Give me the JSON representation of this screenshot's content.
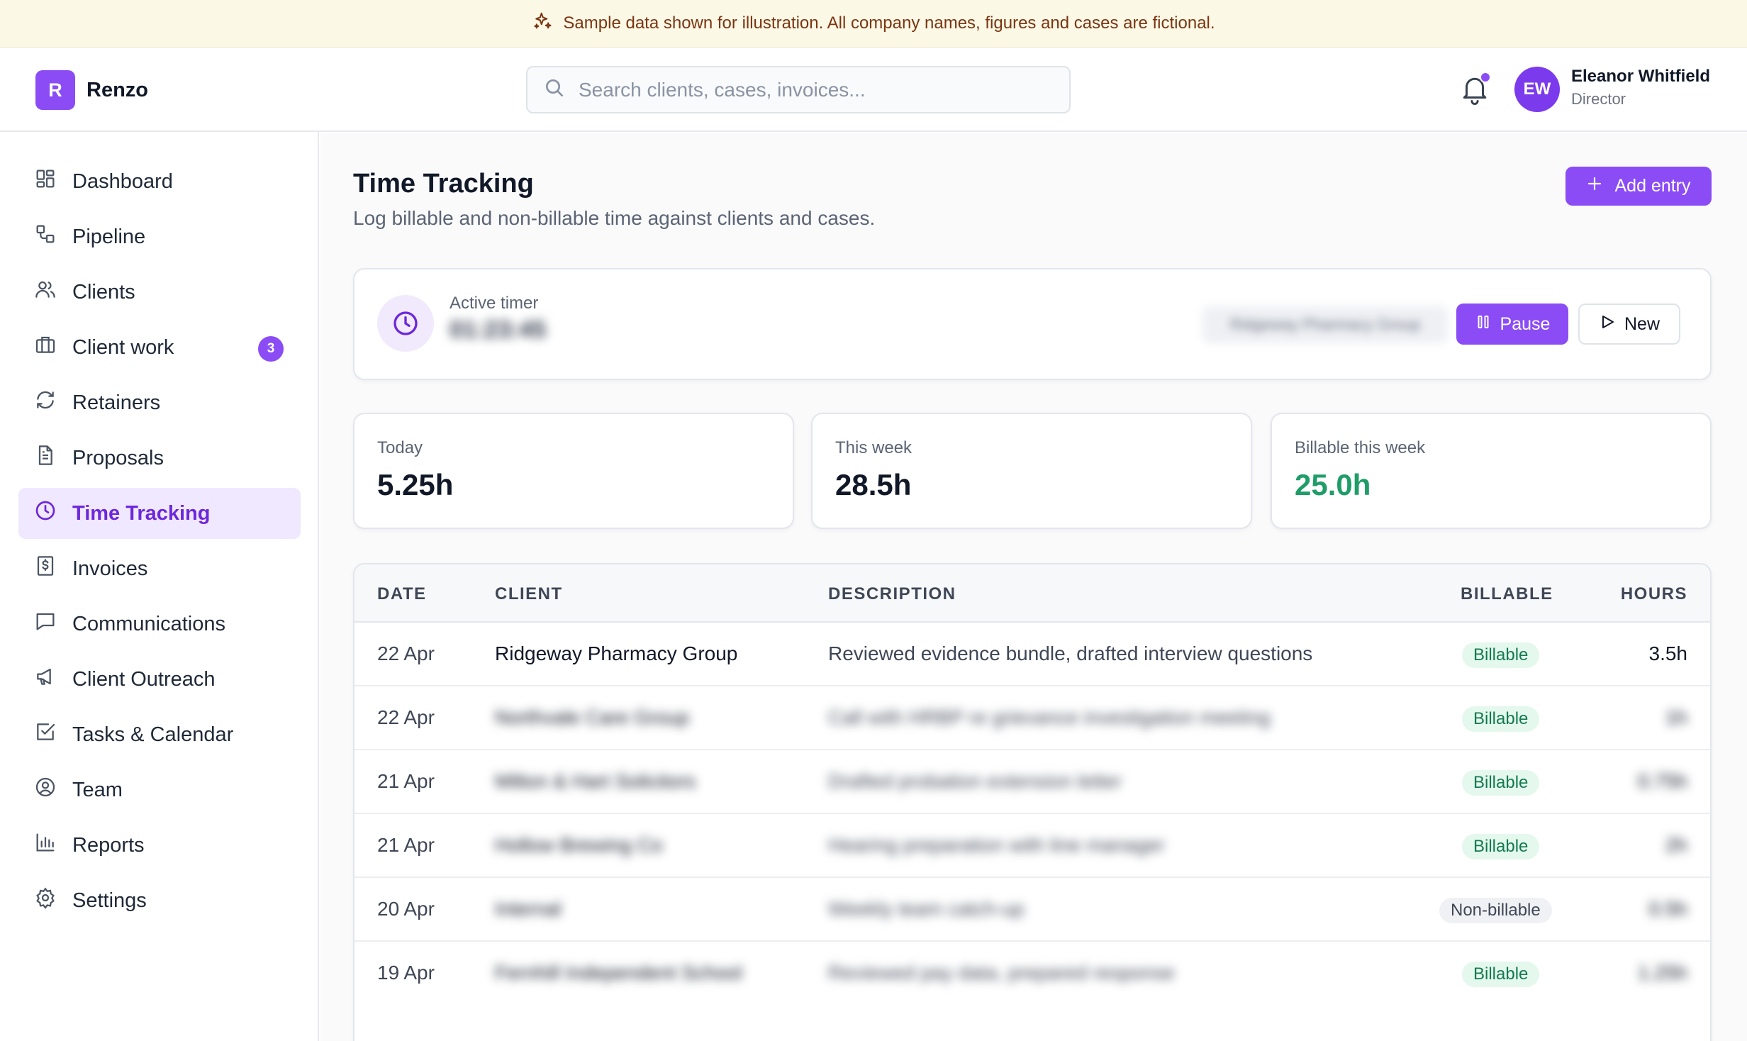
{
  "banner": {
    "text": "Sample data shown for illustration. All company names, figures and cases are fictional.",
    "icon": "sparkles-icon"
  },
  "app": {
    "logo_letter": "R",
    "name": "Renzo"
  },
  "search": {
    "placeholder": "Search clients, cases, invoices..."
  },
  "user": {
    "initials": "EW",
    "name": "Eleanor Whitfield",
    "role": "Director",
    "has_notifications": true
  },
  "sidebar": {
    "items": [
      {
        "label": "Dashboard",
        "icon": "dashboard-icon"
      },
      {
        "label": "Pipeline",
        "icon": "pipeline-icon"
      },
      {
        "label": "Clients",
        "icon": "users-icon"
      },
      {
        "label": "Client work",
        "icon": "briefcase-icon",
        "badge": "3"
      },
      {
        "label": "Retainers",
        "icon": "refresh-icon"
      },
      {
        "label": "Proposals",
        "icon": "document-icon"
      },
      {
        "label": "Time Tracking",
        "icon": "clock-icon",
        "active": true
      },
      {
        "label": "Invoices",
        "icon": "invoice-icon"
      },
      {
        "label": "Communications",
        "icon": "message-icon"
      },
      {
        "label": "Client Outreach",
        "icon": "megaphone-icon"
      },
      {
        "label": "Tasks & Calendar",
        "icon": "checkbox-icon"
      },
      {
        "label": "Team",
        "icon": "user-circle-icon"
      },
      {
        "label": "Reports",
        "icon": "bar-chart-icon"
      },
      {
        "label": "Settings",
        "icon": "gear-icon"
      }
    ]
  },
  "page": {
    "title": "Time Tracking",
    "subtitle": "Log billable and non-billable time against clients and cases.",
    "add_button": "Add entry"
  },
  "timer": {
    "label": "Active timer",
    "value": "01:23:45",
    "case": "Ridgeway Pharmacy Group",
    "pause_label": "Pause",
    "new_label": "New"
  },
  "stats": [
    {
      "label": "Today",
      "value": "5.25h"
    },
    {
      "label": "This week",
      "value": "28.5h"
    },
    {
      "label": "Billable this week",
      "value": "25.0h"
    }
  ],
  "table": {
    "headers": [
      "DATE",
      "CLIENT",
      "DESCRIPTION",
      "BILLABLE",
      "HOURS"
    ],
    "rows": [
      {
        "date": "22 Apr",
        "client": "Ridgeway Pharmacy Group",
        "description": "Reviewed evidence bundle, drafted interview questions",
        "billable": "Billable",
        "hours": "3.5h",
        "redacted": false
      },
      {
        "date": "22 Apr",
        "client": "Northvale Care Group",
        "description": "Call with HRBP re grievance investigation meeting",
        "billable": "Billable",
        "hours": "1h",
        "redacted": true
      },
      {
        "date": "21 Apr",
        "client": "Milton & Hart Solicitors",
        "description": "Drafted probation extension letter",
        "billable": "Billable",
        "hours": "0.75h",
        "redacted": true
      },
      {
        "date": "21 Apr",
        "client": "Hollow Brewing Co",
        "description": "Hearing preparation with line manager",
        "billable": "Billable",
        "hours": "2h",
        "redacted": true
      },
      {
        "date": "20 Apr",
        "client": "Internal",
        "description": "Weekly team catch-up",
        "billable": "Non-billable",
        "hours": "0.5h",
        "redacted": true
      },
      {
        "date": "19 Apr",
        "client": "Fernhill Independent School",
        "description": "Reviewed pay data, prepared response",
        "billable": "Billable",
        "hours": "1.25h",
        "redacted": true
      }
    ]
  },
  "colors": {
    "accent": "#8b4cf6",
    "active_nav_bg": "#f0e8ff",
    "billable_green": "#1f9d68",
    "banner_bg": "#fcf8e6"
  }
}
